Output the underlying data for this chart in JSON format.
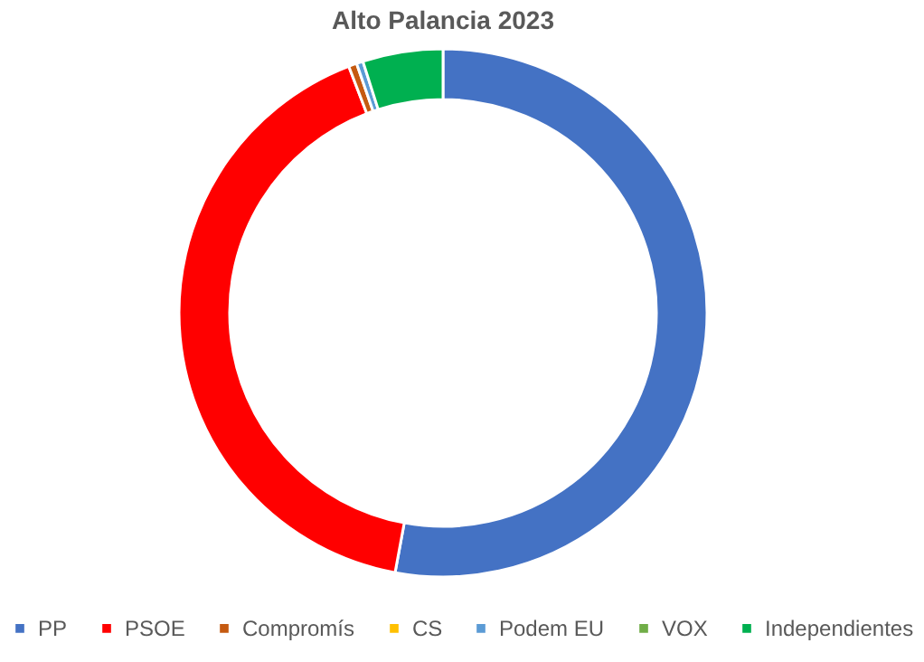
{
  "chart_data": {
    "type": "donut",
    "title": "Alto Palancia 2023",
    "categories": [
      "PP",
      "PSOE",
      "Compromís",
      "CS",
      "Podem EU",
      "VOX",
      "Independientes"
    ],
    "values": [
      52.8,
      41.2,
      0.5,
      null,
      0.4,
      null,
      4.9
    ],
    "colors": [
      "#4472c4",
      "#ff0000",
      "#c55a11",
      "#ffc000",
      "#5b9bd5",
      "#70ad47",
      "#00b050"
    ],
    "legend": "bottom"
  }
}
